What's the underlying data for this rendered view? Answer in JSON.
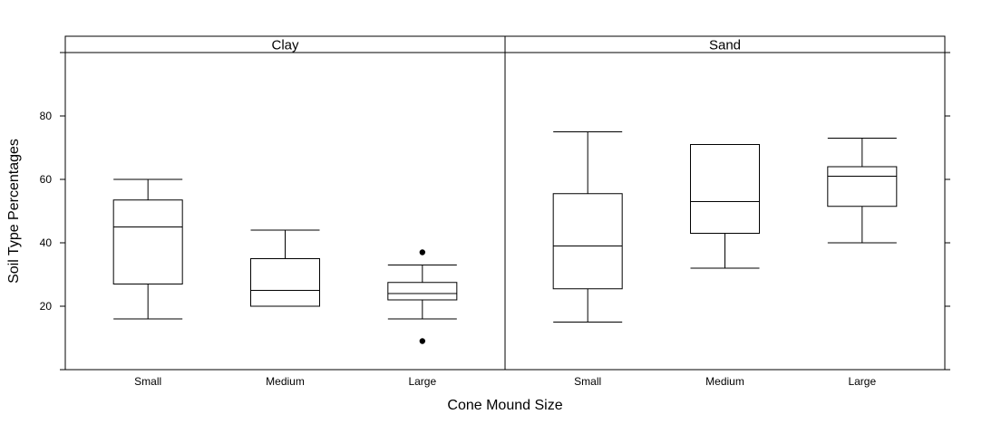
{
  "chart_data": {
    "type": "boxplot",
    "xlabel": "Cone Mound Size",
    "ylabel": "Soil Type Percentages",
    "categories": [
      "Small",
      "Medium",
      "Large"
    ],
    "ylim": [
      0,
      100
    ],
    "yticks": [
      20,
      40,
      60,
      80
    ],
    "panels": [
      {
        "strip": "Clay",
        "boxes": [
          {
            "category": "Small",
            "min": 16,
            "q1": 27,
            "median": 45,
            "q3": 53.5,
            "max": 60,
            "outliers": []
          },
          {
            "category": "Medium",
            "min": 20,
            "q1": 20,
            "median": 25,
            "q3": 35,
            "max": 44,
            "outliers": []
          },
          {
            "category": "Large",
            "min": 16,
            "q1": 22,
            "median": 24,
            "q3": 27.5,
            "max": 33,
            "outliers": [
              37,
              9
            ]
          }
        ]
      },
      {
        "strip": "Sand",
        "boxes": [
          {
            "category": "Small",
            "min": 15,
            "q1": 25.5,
            "median": 39,
            "q3": 55.5,
            "max": 75,
            "outliers": []
          },
          {
            "category": "Medium",
            "min": 32,
            "q1": 43,
            "median": 53,
            "q3": 71,
            "max": 71,
            "outliers": []
          },
          {
            "category": "Large",
            "min": 40,
            "q1": 51.5,
            "median": 61,
            "q3": 64,
            "max": 73,
            "outliers": []
          }
        ]
      }
    ]
  }
}
